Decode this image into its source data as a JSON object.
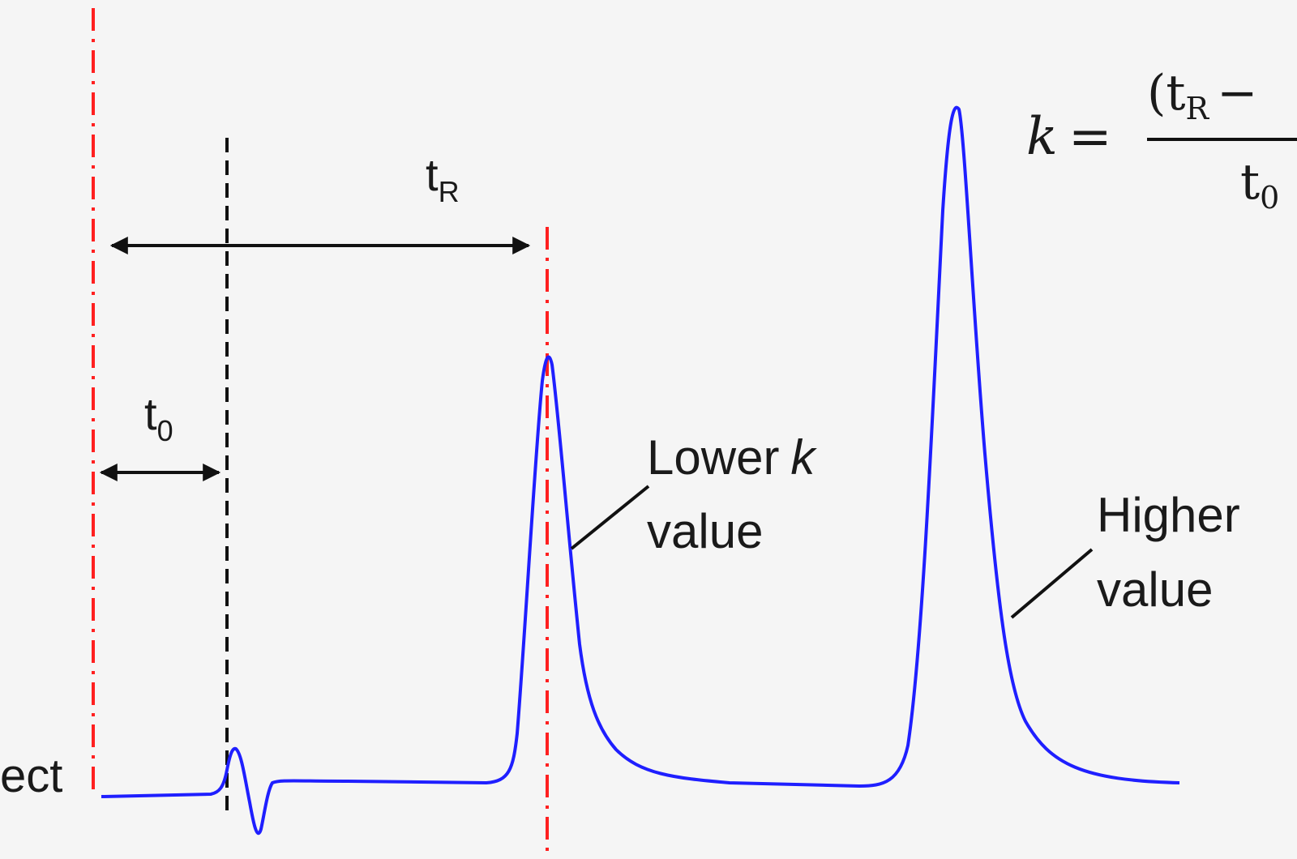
{
  "colors": {
    "background": "#f5f5f5",
    "signal": "#1f1fff",
    "injection_marker": "#ff2020",
    "dead_time_marker": "#111111",
    "ink": "#111111"
  },
  "left_label_fragment": "ect",
  "t0_label": {
    "main": "t",
    "sub": "0"
  },
  "tR_label": {
    "main": "t",
    "sub": "R"
  },
  "callout_lower": {
    "line1_word": "Lower",
    "line1_var": "k",
    "line2": "value"
  },
  "callout_higher": {
    "line1": "Higher",
    "line2": "value"
  },
  "formula": {
    "lhs": "k",
    "equals": "=",
    "num_open": "(t",
    "num_sub": "R",
    "num_minus": "−",
    "den_main": "t",
    "den_sub": "0"
  }
}
